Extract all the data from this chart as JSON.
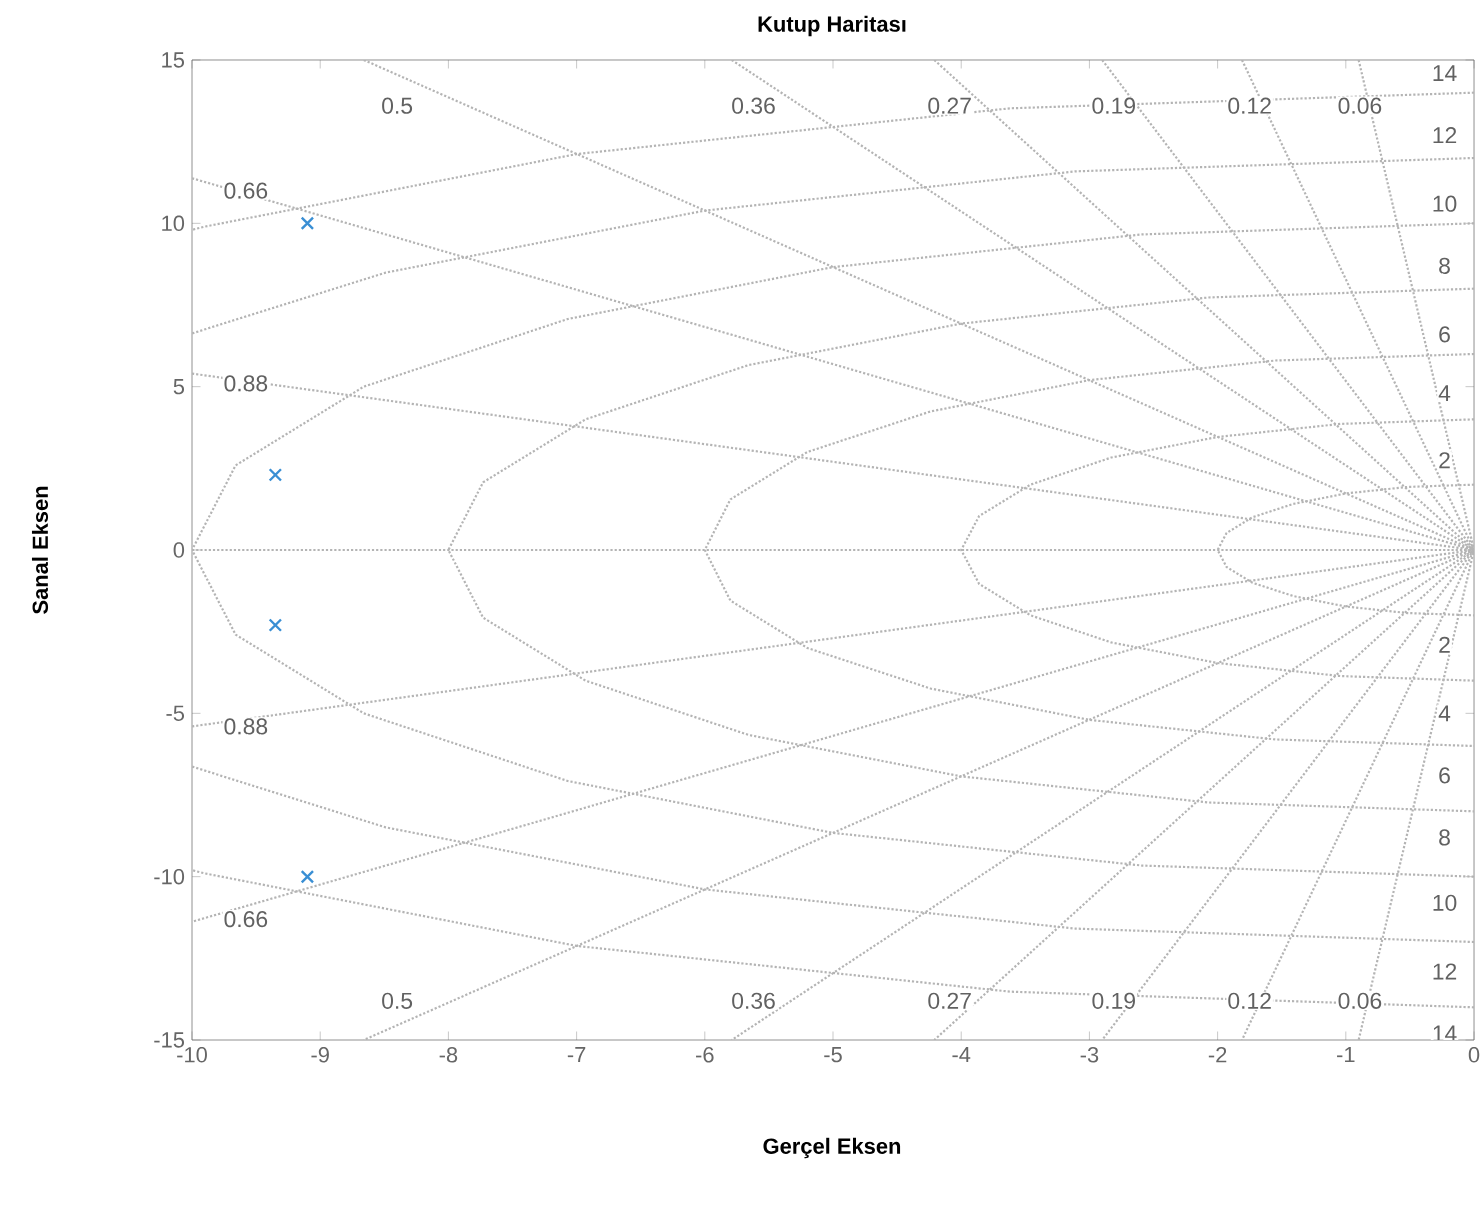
{
  "chart_data": {
    "type": "scatter",
    "title": "Kutup Haritası",
    "xlabel": "Gerçel Eksen",
    "ylabel": "Sanal Eksen",
    "xlim": [
      -10,
      0
    ],
    "ylim": [
      -15,
      15
    ],
    "xticks": [
      -10,
      -9,
      -8,
      -7,
      -6,
      -5,
      -4,
      -3,
      -2,
      -1,
      0
    ],
    "yticks": [
      -15,
      -10,
      -5,
      0,
      5,
      10,
      15
    ],
    "series": [
      {
        "type": "line",
        "color": "#b4b4b4",
        "line_style": "dotted",
        "marker": "none",
        "x": [
          -10,
          0
        ],
        "values": [
          0,
          0
        ]
      },
      {
        "type": "line",
        "color": "#b4b4b4",
        "line_style": "dotted",
        "marker": "none",
        "x": [
          -0.9,
          0,
          -0.9
        ],
        "values": [
          15,
          0,
          -15
        ]
      },
      {
        "type": "line",
        "color": "#b4b4b4",
        "line_style": "dotted",
        "marker": "none",
        "x": [
          -1.81,
          0,
          -1.81
        ],
        "values": [
          15,
          0,
          -15
        ]
      },
      {
        "type": "line",
        "color": "#b4b4b4",
        "line_style": "dotted",
        "marker": "none",
        "x": [
          -2.9,
          0,
          -2.9
        ],
        "values": [
          15,
          0,
          -15
        ]
      },
      {
        "type": "line",
        "color": "#b4b4b4",
        "line_style": "dotted",
        "marker": "none",
        "x": [
          -4.21,
          0,
          -4.21
        ],
        "values": [
          15,
          0,
          -15
        ]
      },
      {
        "type": "line",
        "color": "#b4b4b4",
        "line_style": "dotted",
        "marker": "none",
        "x": [
          -5.79,
          0,
          -5.79
        ],
        "values": [
          15,
          0,
          -15
        ]
      },
      {
        "type": "line",
        "color": "#b4b4b4",
        "line_style": "dotted",
        "marker": "none",
        "x": [
          -8.66,
          0,
          -8.66
        ],
        "values": [
          15,
          0,
          -15
        ]
      },
      {
        "type": "line",
        "color": "#b4b4b4",
        "line_style": "dotted",
        "marker": "none",
        "x": [
          -10,
          0,
          -10
        ],
        "values": [
          11.38,
          0,
          -11.38
        ]
      },
      {
        "type": "line",
        "color": "#b4b4b4",
        "line_style": "dotted",
        "marker": "none",
        "x": [
          -10,
          0,
          -10
        ],
        "values": [
          5.4,
          0,
          -5.4
        ]
      },
      {
        "type": "line",
        "color": "#b4b4b4",
        "line_style": "dotted",
        "marker": "none",
        "x": [
          0,
          -0.52,
          -1,
          -1.41,
          -1.73,
          -1.93,
          -2,
          -1.93,
          -1.73,
          -1.41,
          -1,
          -0.52,
          0
        ],
        "values": [
          2,
          1.93,
          1.73,
          1.41,
          1,
          0.52,
          0,
          -0.52,
          -1,
          -1.41,
          -1.73,
          -1.93,
          -2
        ]
      },
      {
        "type": "line",
        "color": "#b4b4b4",
        "line_style": "dotted",
        "marker": "none",
        "x": [
          0,
          -1.04,
          -2,
          -2.83,
          -3.46,
          -3.86,
          -4,
          -3.86,
          -3.46,
          -2.83,
          -2,
          -1.04,
          0
        ],
        "values": [
          4,
          3.86,
          3.46,
          2.83,
          2,
          1.04,
          0,
          -1.04,
          -2,
          -2.83,
          -3.46,
          -3.86,
          -4
        ]
      },
      {
        "type": "line",
        "color": "#b4b4b4",
        "line_style": "dotted",
        "marker": "none",
        "x": [
          0,
          -1.55,
          -3,
          -4.24,
          -5.2,
          -5.8,
          -6,
          -5.8,
          -5.2,
          -4.24,
          -3,
          -1.55,
          0
        ],
        "values": [
          6,
          5.8,
          5.2,
          4.24,
          3,
          1.55,
          0,
          -1.55,
          -3,
          -4.24,
          -5.2,
          -5.8,
          -6
        ]
      },
      {
        "type": "line",
        "color": "#b4b4b4",
        "line_style": "dotted",
        "marker": "none",
        "x": [
          0,
          -2.07,
          -4,
          -5.66,
          -6.93,
          -7.73,
          -8,
          -7.73,
          -6.93,
          -5.66,
          -4,
          -2.07,
          0
        ],
        "values": [
          8,
          7.73,
          6.93,
          5.66,
          4,
          2.07,
          0,
          -2.07,
          -4,
          -5.66,
          -6.93,
          -7.73,
          -8
        ]
      },
      {
        "type": "line",
        "color": "#b4b4b4",
        "line_style": "dotted",
        "marker": "none",
        "x": [
          0,
          -2.59,
          -5,
          -7.07,
          -8.66,
          -9.66,
          -10,
          -9.66,
          -8.66,
          -7.07,
          -5,
          -2.59,
          0
        ],
        "values": [
          10,
          9.66,
          8.66,
          7.07,
          5,
          2.59,
          0,
          -2.59,
          -5,
          -7.07,
          -8.66,
          -9.66,
          -10
        ]
      },
      {
        "type": "line",
        "color": "#b4b4b4",
        "line_style": "dotted",
        "marker": "none",
        "x": [
          0,
          -3.11,
          -6,
          -8.49,
          -10
        ],
        "values": [
          12,
          11.59,
          10.39,
          8.49,
          6.63
        ]
      },
      {
        "type": "line",
        "color": "#b4b4b4",
        "line_style": "dotted",
        "marker": "none",
        "x": [
          0,
          -3.11,
          -6,
          -8.49,
          -10
        ],
        "values": [
          -12,
          -11.59,
          -10.39,
          -8.49,
          -6.63
        ]
      },
      {
        "type": "line",
        "color": "#b4b4b4",
        "line_style": "dotted",
        "marker": "none",
        "x": [
          0,
          -3.62,
          -7,
          -9.9,
          -10
        ],
        "values": [
          14,
          13.52,
          12.12,
          9.9,
          9.8
        ]
      },
      {
        "type": "line",
        "color": "#b4b4b4",
        "line_style": "dotted",
        "marker": "none",
        "x": [
          0,
          -3.62,
          -7,
          -9.9,
          -10
        ],
        "values": [
          -14,
          -13.52,
          -12.12,
          -9.9,
          -9.8
        ]
      },
      {
        "color": "#3a8fd4",
        "marker": "cross",
        "x": [
          -9.1,
          -9.35,
          -9.35,
          -9.1
        ],
        "values": [
          10,
          2.3,
          -2.3,
          -10
        ]
      }
    ],
    "annotations": [
      {
        "text": "0.5",
        "x": -8.4,
        "y": 13.6
      },
      {
        "text": "0.36",
        "x": -5.62,
        "y": 13.6
      },
      {
        "text": "0.27",
        "x": -4.09,
        "y": 13.6
      },
      {
        "text": "0.19",
        "x": -2.81,
        "y": 13.6
      },
      {
        "text": "0.12",
        "x": -1.75,
        "y": 13.6
      },
      {
        "text": "0.06",
        "x": -0.89,
        "y": 13.6
      },
      {
        "text": "0.66",
        "x": -9.58,
        "y": 11.0
      },
      {
        "text": "0.88",
        "x": -9.58,
        "y": 5.1
      },
      {
        "text": "0.88",
        "x": -9.58,
        "y": -5.4
      },
      {
        "text": "0.66",
        "x": -9.58,
        "y": -11.3
      },
      {
        "text": "0.5",
        "x": -8.4,
        "y": -13.8
      },
      {
        "text": "0.36",
        "x": -5.62,
        "y": -13.8
      },
      {
        "text": "0.27",
        "x": -4.09,
        "y": -13.8
      },
      {
        "text": "0.19",
        "x": -2.81,
        "y": -13.8
      },
      {
        "text": "0.12",
        "x": -1.75,
        "y": -13.8
      },
      {
        "text": "0.06",
        "x": -0.89,
        "y": -13.8
      },
      {
        "text": "14",
        "x": -0.23,
        "y": 14.6
      },
      {
        "text": "12",
        "x": -0.23,
        "y": 12.7
      },
      {
        "text": "10",
        "x": -0.23,
        "y": 10.6
      },
      {
        "text": "8",
        "x": -0.23,
        "y": 8.7
      },
      {
        "text": "6",
        "x": -0.23,
        "y": 6.6
      },
      {
        "text": "4",
        "x": -0.23,
        "y": 4.8
      },
      {
        "text": "2",
        "x": -0.23,
        "y": 2.75
      },
      {
        "text": "2",
        "x": -0.23,
        "y": -2.9
      },
      {
        "text": "4",
        "x": -0.23,
        "y": -5.0
      },
      {
        "text": "6",
        "x": -0.23,
        "y": -6.9
      },
      {
        "text": "8",
        "x": -0.23,
        "y": -8.8
      },
      {
        "text": "10",
        "x": -0.23,
        "y": -10.8
      },
      {
        "text": "12",
        "x": -0.23,
        "y": -12.9
      },
      {
        "text": "14",
        "x": -0.23,
        "y": -14.8
      }
    ]
  }
}
